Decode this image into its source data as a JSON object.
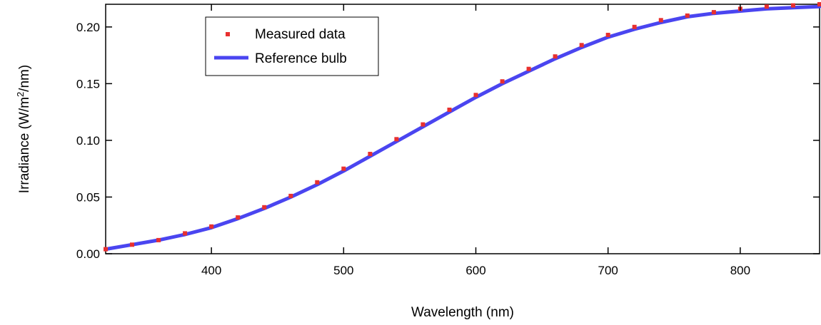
{
  "chart_data": {
    "type": "line",
    "title": "",
    "xlabel": "Wavelength (nm)",
    "ylabel_main": "Irradiance (W/m",
    "ylabel_sup": "2",
    "ylabel_tail": "/nm)",
    "xlim": [
      320,
      860
    ],
    "ylim": [
      0.0,
      0.22
    ],
    "x_ticks": [
      400,
      500,
      600,
      700,
      800
    ],
    "x_tick_labels": [
      "400",
      "500",
      "600",
      "700",
      "800"
    ],
    "y_ticks": [
      0.0,
      0.05,
      0.1,
      0.15,
      0.2
    ],
    "y_tick_labels": [
      "0.00",
      "0.05",
      "0.10",
      "0.15",
      "0.20"
    ],
    "grid": false,
    "legend_position": "top-left",
    "series": [
      {
        "name": "Measured data",
        "style": "points",
        "color": "#e8302f",
        "x": [
          320,
          340,
          360,
          380,
          400,
          420,
          440,
          460,
          480,
          500,
          520,
          540,
          560,
          580,
          600,
          620,
          640,
          660,
          680,
          700,
          720,
          740,
          760,
          780,
          800,
          820,
          840,
          860
        ],
        "y": [
          0.004,
          0.008,
          0.012,
          0.018,
          0.024,
          0.032,
          0.041,
          0.051,
          0.063,
          0.075,
          0.088,
          0.101,
          0.114,
          0.127,
          0.14,
          0.152,
          0.163,
          0.174,
          0.184,
          0.193,
          0.2,
          0.206,
          0.21,
          0.213,
          0.216,
          0.218,
          0.219,
          0.22
        ]
      },
      {
        "name": "Reference bulb",
        "style": "line",
        "color": "#4a45f0",
        "x": [
          320,
          340,
          360,
          380,
          400,
          420,
          440,
          460,
          480,
          500,
          520,
          540,
          560,
          580,
          600,
          620,
          640,
          660,
          680,
          700,
          720,
          740,
          760,
          780,
          800,
          820,
          840,
          860
        ],
        "y": [
          0.004,
          0.008,
          0.012,
          0.017,
          0.023,
          0.031,
          0.04,
          0.05,
          0.061,
          0.073,
          0.086,
          0.099,
          0.112,
          0.125,
          0.138,
          0.15,
          0.161,
          0.172,
          0.182,
          0.191,
          0.198,
          0.204,
          0.209,
          0.212,
          0.214,
          0.216,
          0.217,
          0.218
        ]
      }
    ]
  }
}
